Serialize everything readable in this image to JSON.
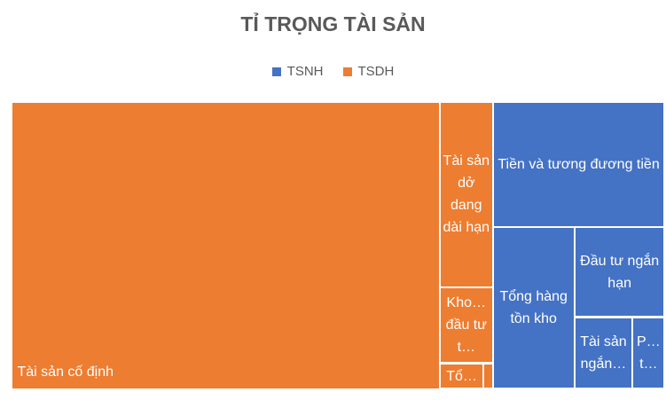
{
  "chart_data": {
    "type": "treemap",
    "title": "TỈ TRỌNG TÀI SẢN",
    "legend_position": "top",
    "series": [
      {
        "name": "TSNH",
        "color": "#4472c4",
        "categories": [
          "Tiền và tương đương tiền",
          "Tổng hàng tồn kho",
          "Đầu tư ngắn hạn",
          "Tài sản ngắn…",
          "P… t…"
        ],
        "values": [
          26.9,
          16.6,
          10.2,
          5.2,
          2.9
        ]
      },
      {
        "name": "TSDH",
        "color": "#ed7d31",
        "categories": [
          "Tài sản cố định",
          "Tài sản dở dang dài hạn",
          "Kho… đầu tư t…",
          "Tổ…",
          null
        ],
        "values": [
          154.1,
          12.3,
          5.0,
          1.4,
          0.3
        ]
      }
    ]
  }
}
